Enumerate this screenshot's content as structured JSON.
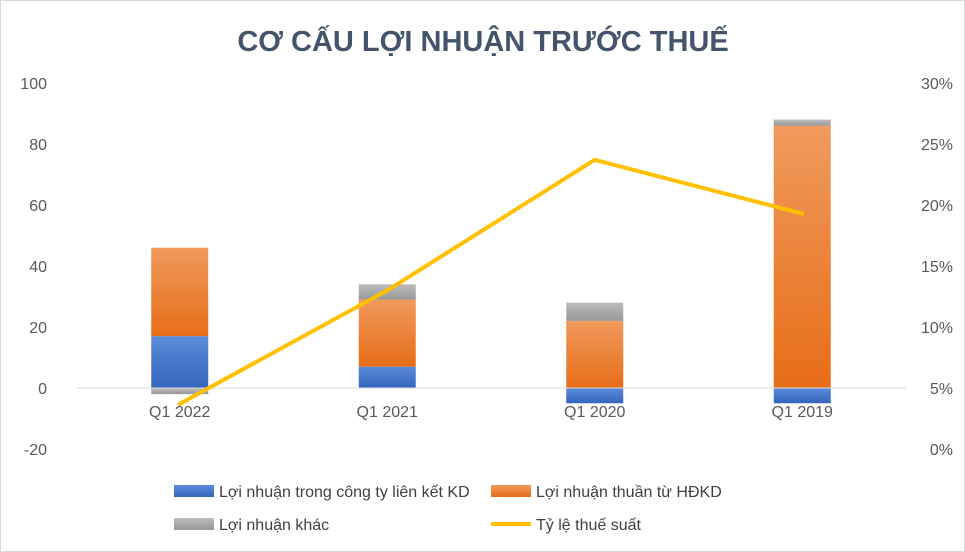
{
  "chart_data": {
    "type": "bar",
    "title": "CƠ CẤU LỢI NHUẬN TRƯỚC THUẾ",
    "categories": [
      "Q1 2022",
      "Q1 2021",
      "Q1 2020",
      "Q1 2019"
    ],
    "y_left": {
      "ylim": [
        -20,
        100
      ],
      "ticks": [
        100,
        80,
        60,
        40,
        20,
        0,
        -20
      ],
      "tick_labels": [
        "100",
        "80",
        "60",
        "40",
        "20",
        "0",
        "-20"
      ]
    },
    "y_right": {
      "ylim": [
        0,
        0.3
      ],
      "ticks": [
        0.3,
        0.25,
        0.2,
        0.15,
        0.1,
        0.05,
        0
      ],
      "tick_labels": [
        "30%",
        "25%",
        "20%",
        "15%",
        "10%",
        "5%",
        "0%"
      ]
    },
    "stacked": true,
    "grid": false,
    "legend_position": "bottom",
    "series": [
      {
        "name": "Lợi nhuận trong công ty liên kết KD",
        "type": "bar",
        "color": "#4472c4",
        "values": [
          17,
          7,
          -5,
          -5
        ]
      },
      {
        "name": "Lợi nhuận thuần từ HĐKD",
        "type": "bar",
        "color": "#ed7d31",
        "values": [
          29,
          22,
          22,
          86
        ]
      },
      {
        "name": "Lợi nhuận khác",
        "type": "bar",
        "color": "#a5a5a5",
        "values": [
          -2,
          5,
          6,
          2
        ]
      },
      {
        "name": "Tỷ lệ thuế suất",
        "type": "line",
        "axis": "right",
        "color": "#ffc000",
        "values": [
          0.037,
          0.13,
          0.237,
          0.193
        ]
      }
    ]
  }
}
